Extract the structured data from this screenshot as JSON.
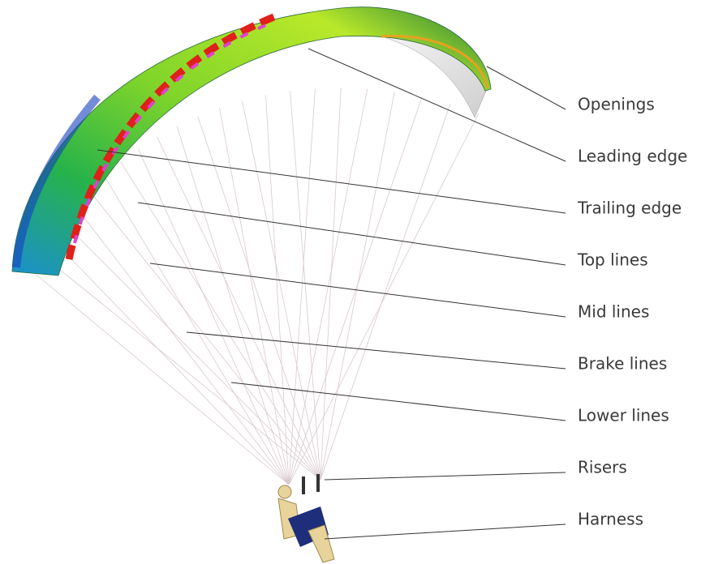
{
  "labels": [
    "Openings",
    "Leading edge",
    "Trailing edge",
    "Top lines",
    "Mid lines",
    "Brake lines",
    "Lower lines",
    "Risers",
    "Harness"
  ]
}
